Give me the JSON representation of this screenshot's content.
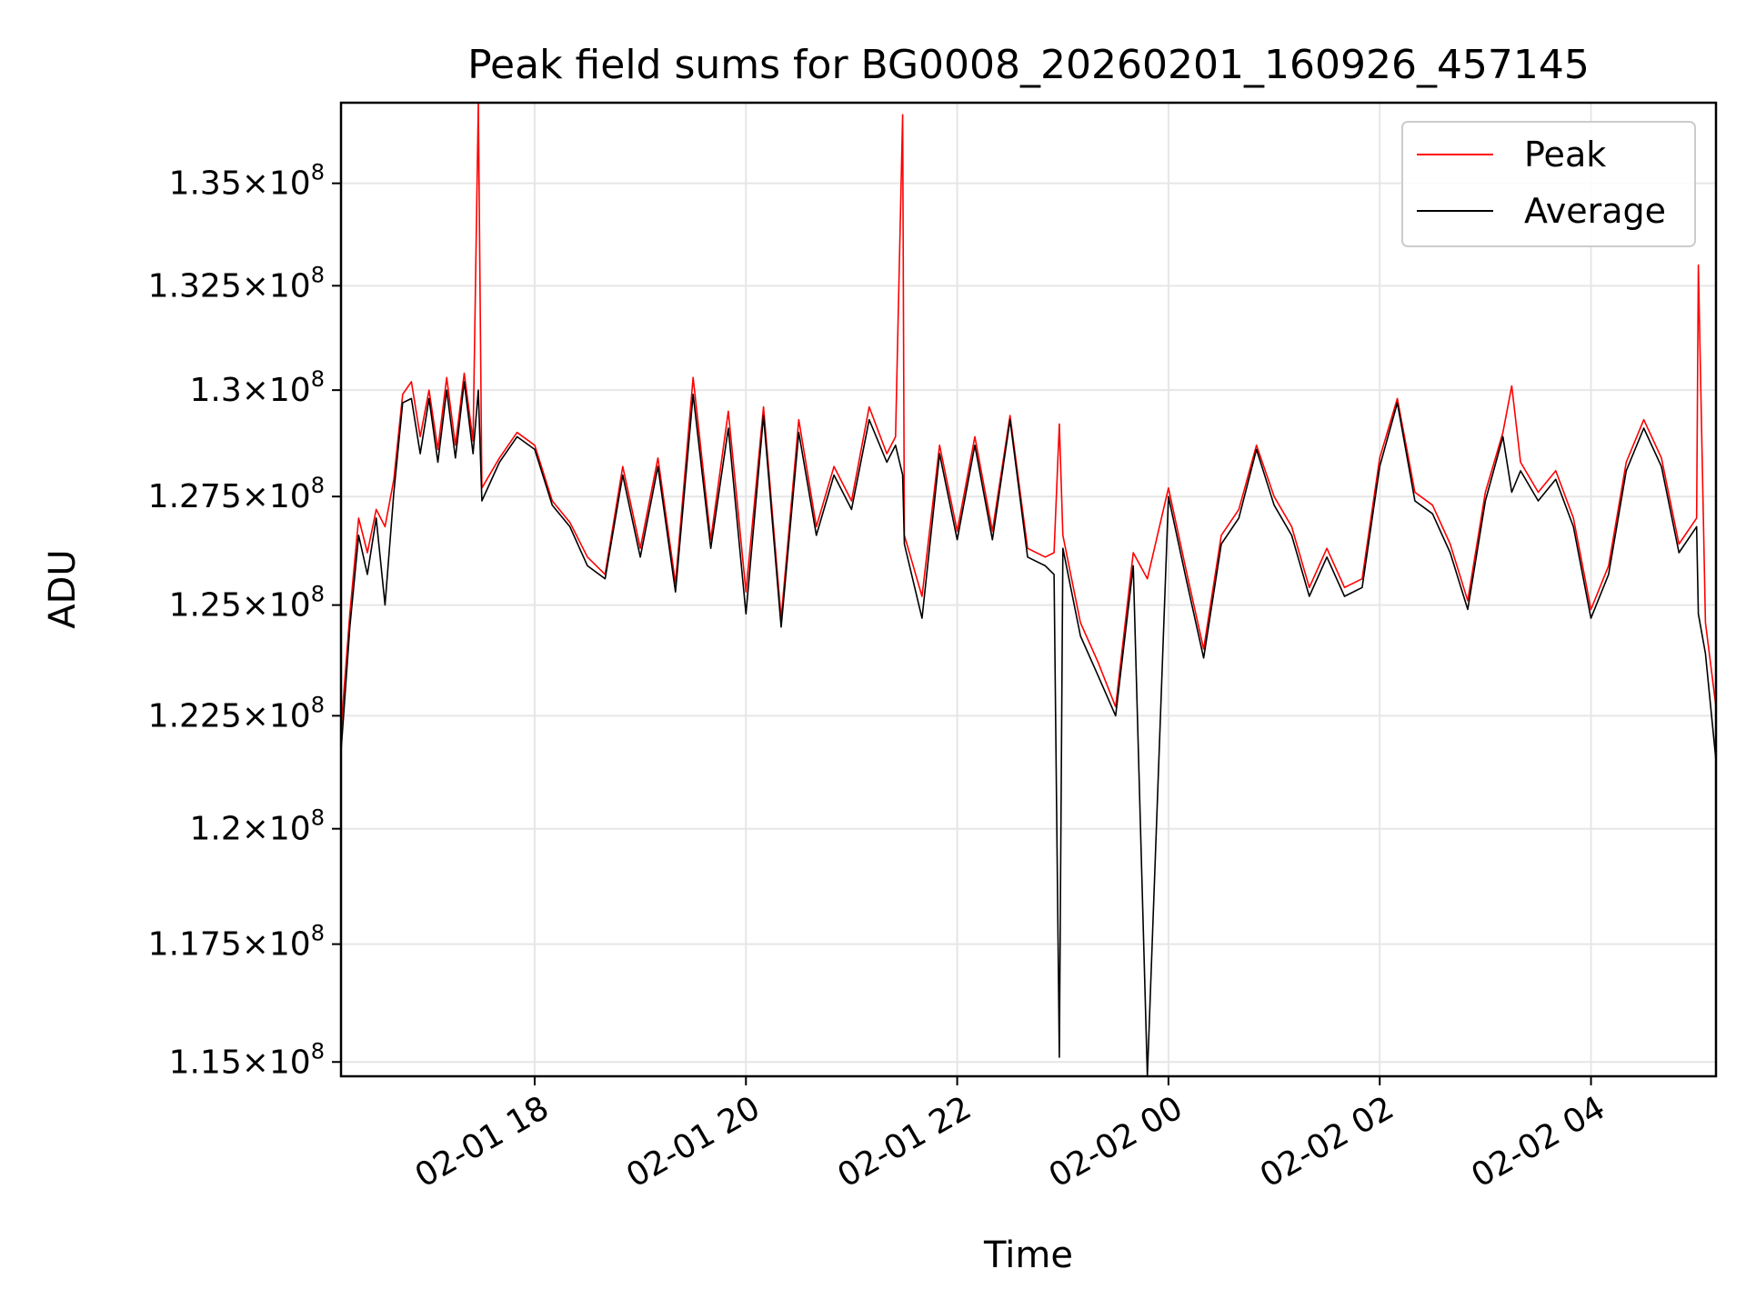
{
  "chart_data": {
    "type": "line",
    "title": "Peak field sums for BG0008_20260201_160926_457145",
    "xlabel": "Time",
    "ylabel": "ADU",
    "x_range": [
      "2026-02-01 16:10",
      "2026-02-02 05:11"
    ],
    "ylim": [
      114700000,
      137000000
    ],
    "y_scale": "log",
    "grid": true,
    "legend_position": "top-right",
    "x_ticks": [
      {
        "value": "2026-02-01 18:00",
        "label": "02-01 18"
      },
      {
        "value": "2026-02-01 20:00",
        "label": "02-01 20"
      },
      {
        "value": "2026-02-01 22:00",
        "label": "02-01 22"
      },
      {
        "value": "2026-02-02 00:00",
        "label": "02-02 00"
      },
      {
        "value": "2026-02-02 02:00",
        "label": "02-02 02"
      },
      {
        "value": "2026-02-02 04:00",
        "label": "02-02 04"
      }
    ],
    "y_ticks": [
      {
        "value": 115000000,
        "mantissa": "1.15",
        "exponent": "8"
      },
      {
        "value": 117500000,
        "mantissa": "1.175",
        "exponent": "8"
      },
      {
        "value": 120000000,
        "mantissa": "1.2",
        "exponent": "8"
      },
      {
        "value": 122500000,
        "mantissa": "1.225",
        "exponent": "8"
      },
      {
        "value": 125000000,
        "mantissa": "1.25",
        "exponent": "8"
      },
      {
        "value": 127500000,
        "mantissa": "1.275",
        "exponent": "8"
      },
      {
        "value": 130000000,
        "mantissa": "1.3",
        "exponent": "8"
      },
      {
        "value": 132500000,
        "mantissa": "1.325",
        "exponent": "8"
      },
      {
        "value": 135000000,
        "mantissa": "1.35",
        "exponent": "8"
      }
    ],
    "series": [
      {
        "name": "Peak",
        "color": "#ff0000",
        "points": [
          [
            "2026-02-01 16:10",
            122200000
          ],
          [
            "2026-02-01 16:15",
            124800000
          ],
          [
            "2026-02-01 16:20",
            127000000
          ],
          [
            "2026-02-01 16:25",
            126200000
          ],
          [
            "2026-02-01 16:30",
            127200000
          ],
          [
            "2026-02-01 16:35",
            126800000
          ],
          [
            "2026-02-01 16:40",
            127900000
          ],
          [
            "2026-02-01 16:45",
            129900000
          ],
          [
            "2026-02-01 16:50",
            130200000
          ],
          [
            "2026-02-01 16:55",
            128900000
          ],
          [
            "2026-02-01 17:00",
            130000000
          ],
          [
            "2026-02-01 17:05",
            128600000
          ],
          [
            "2026-02-01 17:10",
            130300000
          ],
          [
            "2026-02-01 17:15",
            128700000
          ],
          [
            "2026-02-01 17:20",
            130400000
          ],
          [
            "2026-02-01 17:25",
            128800000
          ],
          [
            "2026-02-01 17:28",
            137000000
          ],
          [
            "2026-02-01 17:30",
            127700000
          ],
          [
            "2026-02-01 17:40",
            128400000
          ],
          [
            "2026-02-01 17:50",
            129000000
          ],
          [
            "2026-02-01 18:00",
            128700000
          ],
          [
            "2026-02-01 18:10",
            127400000
          ],
          [
            "2026-02-01 18:20",
            126900000
          ],
          [
            "2026-02-01 18:30",
            126100000
          ],
          [
            "2026-02-01 18:40",
            125700000
          ],
          [
            "2026-02-01 18:50",
            128200000
          ],
          [
            "2026-02-01 19:00",
            126300000
          ],
          [
            "2026-02-01 19:10",
            128400000
          ],
          [
            "2026-02-01 19:20",
            125500000
          ],
          [
            "2026-02-01 19:30",
            130300000
          ],
          [
            "2026-02-01 19:40",
            126500000
          ],
          [
            "2026-02-01 19:50",
            129500000
          ],
          [
            "2026-02-01 20:00",
            125300000
          ],
          [
            "2026-02-01 20:10",
            129600000
          ],
          [
            "2026-02-01 20:20",
            124700000
          ],
          [
            "2026-02-01 20:30",
            129300000
          ],
          [
            "2026-02-01 20:40",
            126800000
          ],
          [
            "2026-02-01 20:50",
            128200000
          ],
          [
            "2026-02-01 21:00",
            127400000
          ],
          [
            "2026-02-01 21:10",
            129600000
          ],
          [
            "2026-02-01 21:20",
            128500000
          ],
          [
            "2026-02-01 21:25",
            128900000
          ],
          [
            "2026-02-01 21:29",
            136700000
          ],
          [
            "2026-02-01 21:30",
            126600000
          ],
          [
            "2026-02-01 21:40",
            125200000
          ],
          [
            "2026-02-01 21:50",
            128700000
          ],
          [
            "2026-02-01 22:00",
            126700000
          ],
          [
            "2026-02-01 22:10",
            128900000
          ],
          [
            "2026-02-01 22:20",
            126700000
          ],
          [
            "2026-02-01 22:30",
            129400000
          ],
          [
            "2026-02-01 22:40",
            126300000
          ],
          [
            "2026-02-01 22:50",
            126100000
          ],
          [
            "2026-02-01 22:55",
            126200000
          ],
          [
            "2026-02-01 22:58",
            129200000
          ],
          [
            "2026-02-01 23:00",
            126600000
          ],
          [
            "2026-02-01 23:10",
            124600000
          ],
          [
            "2026-02-01 23:20",
            123700000
          ],
          [
            "2026-02-01 23:30",
            122700000
          ],
          [
            "2026-02-01 23:40",
            126200000
          ],
          [
            "2026-02-01 23:48",
            125600000
          ],
          [
            "2026-02-02 00:00",
            127700000
          ],
          [
            "2026-02-02 00:10",
            125800000
          ],
          [
            "2026-02-02 00:20",
            124000000
          ],
          [
            "2026-02-02 00:30",
            126600000
          ],
          [
            "2026-02-02 00:40",
            127200000
          ],
          [
            "2026-02-02 00:50",
            128700000
          ],
          [
            "2026-02-02 01:00",
            127500000
          ],
          [
            "2026-02-02 01:10",
            126800000
          ],
          [
            "2026-02-02 01:20",
            125400000
          ],
          [
            "2026-02-02 01:30",
            126300000
          ],
          [
            "2026-02-02 01:40",
            125400000
          ],
          [
            "2026-02-02 01:50",
            125600000
          ],
          [
            "2026-02-02 02:00",
            128400000
          ],
          [
            "2026-02-02 02:10",
            129800000
          ],
          [
            "2026-02-02 02:20",
            127600000
          ],
          [
            "2026-02-02 02:30",
            127300000
          ],
          [
            "2026-02-02 02:40",
            126400000
          ],
          [
            "2026-02-02 02:50",
            125100000
          ],
          [
            "2026-02-02 03:00",
            127600000
          ],
          [
            "2026-02-02 03:10",
            129000000
          ],
          [
            "2026-02-02 03:15",
            130100000
          ],
          [
            "2026-02-02 03:20",
            128300000
          ],
          [
            "2026-02-02 03:30",
            127600000
          ],
          [
            "2026-02-02 03:40",
            128100000
          ],
          [
            "2026-02-02 03:50",
            127000000
          ],
          [
            "2026-02-02 04:00",
            124900000
          ],
          [
            "2026-02-02 04:10",
            125900000
          ],
          [
            "2026-02-02 04:20",
            128300000
          ],
          [
            "2026-02-02 04:30",
            129300000
          ],
          [
            "2026-02-02 04:40",
            128400000
          ],
          [
            "2026-02-02 04:50",
            126400000
          ],
          [
            "2026-02-02 05:00",
            127000000
          ],
          [
            "2026-02-02 05:01",
            133000000
          ],
          [
            "2026-02-02 05:05",
            124600000
          ],
          [
            "2026-02-02 05:11",
            122700000
          ]
        ]
      },
      {
        "name": "Average",
        "color": "#000000",
        "points": [
          [
            "2026-02-01 16:10",
            121700000
          ],
          [
            "2026-02-01 16:15",
            124500000
          ],
          [
            "2026-02-01 16:20",
            126600000
          ],
          [
            "2026-02-01 16:25",
            125700000
          ],
          [
            "2026-02-01 16:30",
            127000000
          ],
          [
            "2026-02-01 16:35",
            125000000
          ],
          [
            "2026-02-01 16:40",
            127600000
          ],
          [
            "2026-02-01 16:45",
            129700000
          ],
          [
            "2026-02-01 16:50",
            129800000
          ],
          [
            "2026-02-01 16:55",
            128500000
          ],
          [
            "2026-02-01 17:00",
            129800000
          ],
          [
            "2026-02-01 17:05",
            128300000
          ],
          [
            "2026-02-01 17:10",
            130000000
          ],
          [
            "2026-02-01 17:15",
            128400000
          ],
          [
            "2026-02-01 17:20",
            130200000
          ],
          [
            "2026-02-01 17:25",
            128500000
          ],
          [
            "2026-02-01 17:28",
            130000000
          ],
          [
            "2026-02-01 17:30",
            127400000
          ],
          [
            "2026-02-01 17:40",
            128300000
          ],
          [
            "2026-02-01 17:50",
            128900000
          ],
          [
            "2026-02-01 18:00",
            128600000
          ],
          [
            "2026-02-01 18:10",
            127300000
          ],
          [
            "2026-02-01 18:20",
            126800000
          ],
          [
            "2026-02-01 18:30",
            125900000
          ],
          [
            "2026-02-01 18:40",
            125600000
          ],
          [
            "2026-02-01 18:50",
            128000000
          ],
          [
            "2026-02-01 19:00",
            126100000
          ],
          [
            "2026-02-01 19:10",
            128200000
          ],
          [
            "2026-02-01 19:20",
            125300000
          ],
          [
            "2026-02-01 19:30",
            129900000
          ],
          [
            "2026-02-01 19:40",
            126300000
          ],
          [
            "2026-02-01 19:50",
            129100000
          ],
          [
            "2026-02-01 20:00",
            124800000
          ],
          [
            "2026-02-01 20:10",
            129400000
          ],
          [
            "2026-02-01 20:20",
            124500000
          ],
          [
            "2026-02-01 20:30",
            129000000
          ],
          [
            "2026-02-01 20:40",
            126600000
          ],
          [
            "2026-02-01 20:50",
            128000000
          ],
          [
            "2026-02-01 21:00",
            127200000
          ],
          [
            "2026-02-01 21:10",
            129300000
          ],
          [
            "2026-02-01 21:20",
            128300000
          ],
          [
            "2026-02-01 21:25",
            128700000
          ],
          [
            "2026-02-01 21:29",
            128000000
          ],
          [
            "2026-02-01 21:30",
            126400000
          ],
          [
            "2026-02-01 21:40",
            124700000
          ],
          [
            "2026-02-01 21:50",
            128500000
          ],
          [
            "2026-02-01 22:00",
            126500000
          ],
          [
            "2026-02-01 22:10",
            128700000
          ],
          [
            "2026-02-01 22:20",
            126500000
          ],
          [
            "2026-02-01 22:30",
            129300000
          ],
          [
            "2026-02-01 22:40",
            126100000
          ],
          [
            "2026-02-01 22:50",
            125900000
          ],
          [
            "2026-02-01 22:55",
            125700000
          ],
          [
            "2026-02-01 22:58",
            115100000
          ],
          [
            "2026-02-01 23:00",
            126300000
          ],
          [
            "2026-02-01 23:10",
            124300000
          ],
          [
            "2026-02-01 23:20",
            123400000
          ],
          [
            "2026-02-01 23:30",
            122500000
          ],
          [
            "2026-02-01 23:40",
            125900000
          ],
          [
            "2026-02-01 23:48",
            114700000
          ],
          [
            "2026-02-02 00:00",
            127500000
          ],
          [
            "2026-02-02 00:10",
            125600000
          ],
          [
            "2026-02-02 00:20",
            123800000
          ],
          [
            "2026-02-02 00:30",
            126400000
          ],
          [
            "2026-02-02 00:40",
            127000000
          ],
          [
            "2026-02-02 00:50",
            128600000
          ],
          [
            "2026-02-02 01:00",
            127300000
          ],
          [
            "2026-02-02 01:10",
            126600000
          ],
          [
            "2026-02-02 01:20",
            125200000
          ],
          [
            "2026-02-02 01:30",
            126100000
          ],
          [
            "2026-02-02 01:40",
            125200000
          ],
          [
            "2026-02-02 01:50",
            125400000
          ],
          [
            "2026-02-02 02:00",
            128200000
          ],
          [
            "2026-02-02 02:10",
            129700000
          ],
          [
            "2026-02-02 02:20",
            127400000
          ],
          [
            "2026-02-02 02:30",
            127100000
          ],
          [
            "2026-02-02 02:40",
            126200000
          ],
          [
            "2026-02-02 02:50",
            124900000
          ],
          [
            "2026-02-02 03:00",
            127400000
          ],
          [
            "2026-02-02 03:10",
            128900000
          ],
          [
            "2026-02-02 03:15",
            127600000
          ],
          [
            "2026-02-02 03:20",
            128100000
          ],
          [
            "2026-02-02 03:30",
            127400000
          ],
          [
            "2026-02-02 03:40",
            127900000
          ],
          [
            "2026-02-02 03:50",
            126800000
          ],
          [
            "2026-02-02 04:00",
            124700000
          ],
          [
            "2026-02-02 04:10",
            125700000
          ],
          [
            "2026-02-02 04:20",
            128100000
          ],
          [
            "2026-02-02 04:30",
            129100000
          ],
          [
            "2026-02-02 04:40",
            128200000
          ],
          [
            "2026-02-02 04:50",
            126200000
          ],
          [
            "2026-02-02 05:00",
            126800000
          ],
          [
            "2026-02-02 05:01",
            124800000
          ],
          [
            "2026-02-02 05:05",
            123900000
          ],
          [
            "2026-02-02 05:11",
            121500000
          ]
        ]
      }
    ]
  }
}
